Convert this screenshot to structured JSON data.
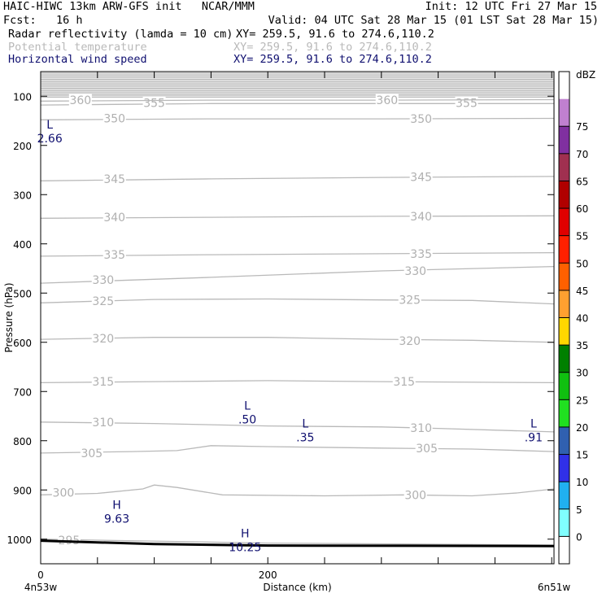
{
  "header": {
    "model": "HAIC-HIWC 13km ARW-GFS init   NCAR/MMM",
    "init": "Init: 12 UTC Fri 27 Mar 15",
    "fcst": "Fcst:   16 h",
    "valid": "Valid: 04 UTC Sat 28 Mar 15 (01 LST Sat 28 Mar 15)",
    "fields": [
      {
        "name": "Radar reflectivity (lamda = 10 cm)",
        "xy": "XY= 259.5, 91.6 to 274.6,110.2",
        "color": "#000000"
      },
      {
        "name": "Potential temperature",
        "xy": "XY= 259.5, 91.6 to 274.6,110.2",
        "color": "#b9b9b9"
      },
      {
        "name": "Horizontal wind speed",
        "xy": "XY= 259.5, 91.6 to 274.6,110.2",
        "color": "#101070"
      }
    ]
  },
  "chart_data": {
    "type": "line",
    "title": "",
    "xlabel": "Distance (km)",
    "ylabel": "Pressure (hPa)",
    "x_ticks": [
      {
        "value": 0,
        "label": "0"
      },
      {
        "value": 200,
        "label": "200"
      }
    ],
    "x_endpoints": {
      "left": "4n53w",
      "right": "6n51w"
    },
    "xlim": [
      0,
      452
    ],
    "ylim": [
      1050,
      50
    ],
    "y_ticks": [
      100,
      200,
      300,
      400,
      500,
      600,
      700,
      800,
      900,
      1000
    ],
    "x_minor_ticks": [
      0,
      50,
      100,
      150,
      200,
      250,
      300,
      350,
      400,
      450
    ],
    "isentropes": [
      {
        "label": "295",
        "points": [
          [
            0,
            1000
          ],
          [
            200,
            1008
          ],
          [
            452,
            1012
          ]
        ],
        "labels_at": [
          [
            25,
            1002
          ]
        ]
      },
      {
        "label": "300",
        "points": [
          [
            0,
            910
          ],
          [
            50,
            907
          ],
          [
            90,
            898
          ],
          [
            100,
            890
          ],
          [
            120,
            895
          ],
          [
            160,
            910
          ],
          [
            250,
            912
          ],
          [
            320,
            910
          ],
          [
            380,
            912
          ],
          [
            420,
            906
          ],
          [
            452,
            898
          ]
        ],
        "labels_at": [
          [
            20,
            905
          ],
          [
            330,
            910
          ]
        ]
      },
      {
        "label": "305",
        "points": [
          [
            0,
            825
          ],
          [
            80,
            822
          ],
          [
            120,
            820
          ],
          [
            150,
            810
          ],
          [
            200,
            812
          ],
          [
            300,
            815
          ],
          [
            380,
            817
          ],
          [
            452,
            822
          ]
        ],
        "labels_at": [
          [
            45,
            825
          ],
          [
            340,
            815
          ]
        ]
      },
      {
        "label": "310",
        "points": [
          [
            0,
            762
          ],
          [
            100,
            765
          ],
          [
            200,
            770
          ],
          [
            300,
            772
          ],
          [
            350,
            775
          ],
          [
            452,
            782
          ]
        ],
        "labels_at": [
          [
            55,
            762
          ],
          [
            335,
            774
          ]
        ]
      },
      {
        "label": "315",
        "points": [
          [
            0,
            682
          ],
          [
            100,
            680
          ],
          [
            200,
            678
          ],
          [
            300,
            680
          ],
          [
            452,
            682
          ]
        ],
        "labels_at": [
          [
            55,
            680
          ],
          [
            320,
            680
          ]
        ]
      },
      {
        "label": "320",
        "points": [
          [
            0,
            594
          ],
          [
            100,
            590
          ],
          [
            200,
            590
          ],
          [
            300,
            594
          ],
          [
            380,
            596
          ],
          [
            452,
            600
          ]
        ],
        "labels_at": [
          [
            55,
            592
          ],
          [
            325,
            597
          ]
        ]
      },
      {
        "label": "325",
        "points": [
          [
            0,
            520
          ],
          [
            100,
            513
          ],
          [
            200,
            512
          ],
          [
            300,
            514
          ],
          [
            380,
            515
          ],
          [
            452,
            522
          ]
        ],
        "labels_at": [
          [
            55,
            516
          ],
          [
            325,
            514
          ]
        ]
      },
      {
        "label": "330",
        "points": [
          [
            0,
            480
          ],
          [
            150,
            468
          ],
          [
            300,
            455
          ],
          [
            452,
            446
          ]
        ],
        "labels_at": [
          [
            55,
            473
          ],
          [
            330,
            455
          ]
        ]
      },
      {
        "label": "335",
        "points": [
          [
            0,
            425
          ],
          [
            150,
            422
          ],
          [
            300,
            420
          ],
          [
            452,
            418
          ]
        ],
        "labels_at": [
          [
            65,
            422
          ],
          [
            335,
            420
          ]
        ]
      },
      {
        "label": "340",
        "points": [
          [
            0,
            348
          ],
          [
            150,
            346
          ],
          [
            300,
            344
          ],
          [
            452,
            343
          ]
        ],
        "labels_at": [
          [
            65,
            346
          ],
          [
            335,
            344
          ]
        ]
      },
      {
        "label": "345",
        "points": [
          [
            0,
            272
          ],
          [
            150,
            268
          ],
          [
            300,
            265
          ],
          [
            452,
            263
          ]
        ],
        "labels_at": [
          [
            65,
            268
          ],
          [
            335,
            264
          ]
        ]
      },
      {
        "label": "350",
        "points": [
          [
            0,
            148
          ],
          [
            150,
            146
          ],
          [
            300,
            146
          ],
          [
            452,
            145
          ]
        ],
        "labels_at": [
          [
            65,
            145
          ],
          [
            335,
            146
          ]
        ]
      },
      {
        "label": "355",
        "points": [
          [
            0,
            118
          ],
          [
            150,
            115
          ],
          [
            300,
            115
          ],
          [
            452,
            115
          ]
        ],
        "labels_at": [
          [
            100,
            114
          ],
          [
            375,
            114
          ]
        ]
      },
      {
        "label": "360",
        "points": [
          [
            0,
            110
          ],
          [
            150,
            108
          ],
          [
            300,
            108
          ],
          [
            452,
            107
          ]
        ],
        "labels_at": [
          [
            35,
            108
          ],
          [
            305,
            108
          ]
        ]
      }
    ],
    "stratosphere_band": {
      "top": 50,
      "bottom": 103
    },
    "terrain": [
      [
        0,
        1003
      ],
      [
        100,
        1010
      ],
      [
        200,
        1013
      ],
      [
        452,
        1014
      ]
    ],
    "extrema": [
      {
        "type": "L",
        "value": "2.66",
        "x": 8,
        "p": 172
      },
      {
        "type": "L",
        "value": ".50",
        "x": 182,
        "p": 743
      },
      {
        "type": "L",
        "value": ".35",
        "x": 233,
        "p": 780
      },
      {
        "type": "L",
        "value": ".91",
        "x": 434,
        "p": 780
      },
      {
        "type": "H",
        "value": "9.63",
        "x": 67,
        "p": 945
      },
      {
        "type": "H",
        "value": "10.25",
        "x": 180,
        "p": 1003
      }
    ],
    "colorbar": {
      "unit": "dBZ",
      "levels": [
        "0",
        "5",
        "10",
        "15",
        "20",
        "25",
        "30",
        "35",
        "40",
        "45",
        "50",
        "55",
        "60",
        "65",
        "70",
        "75"
      ],
      "colors": [
        "#ffffff",
        "#80ffff",
        "#20b0f0",
        "#3030e8",
        "#3060b0",
        "#20e020",
        "#10c010",
        "#008000",
        "#ffd700",
        "#ffa030",
        "#ff6000",
        "#ff2000",
        "#e00000",
        "#b00000",
        "#a03050",
        "#8030a0",
        "#c080d0",
        "#ffffff"
      ]
    }
  }
}
